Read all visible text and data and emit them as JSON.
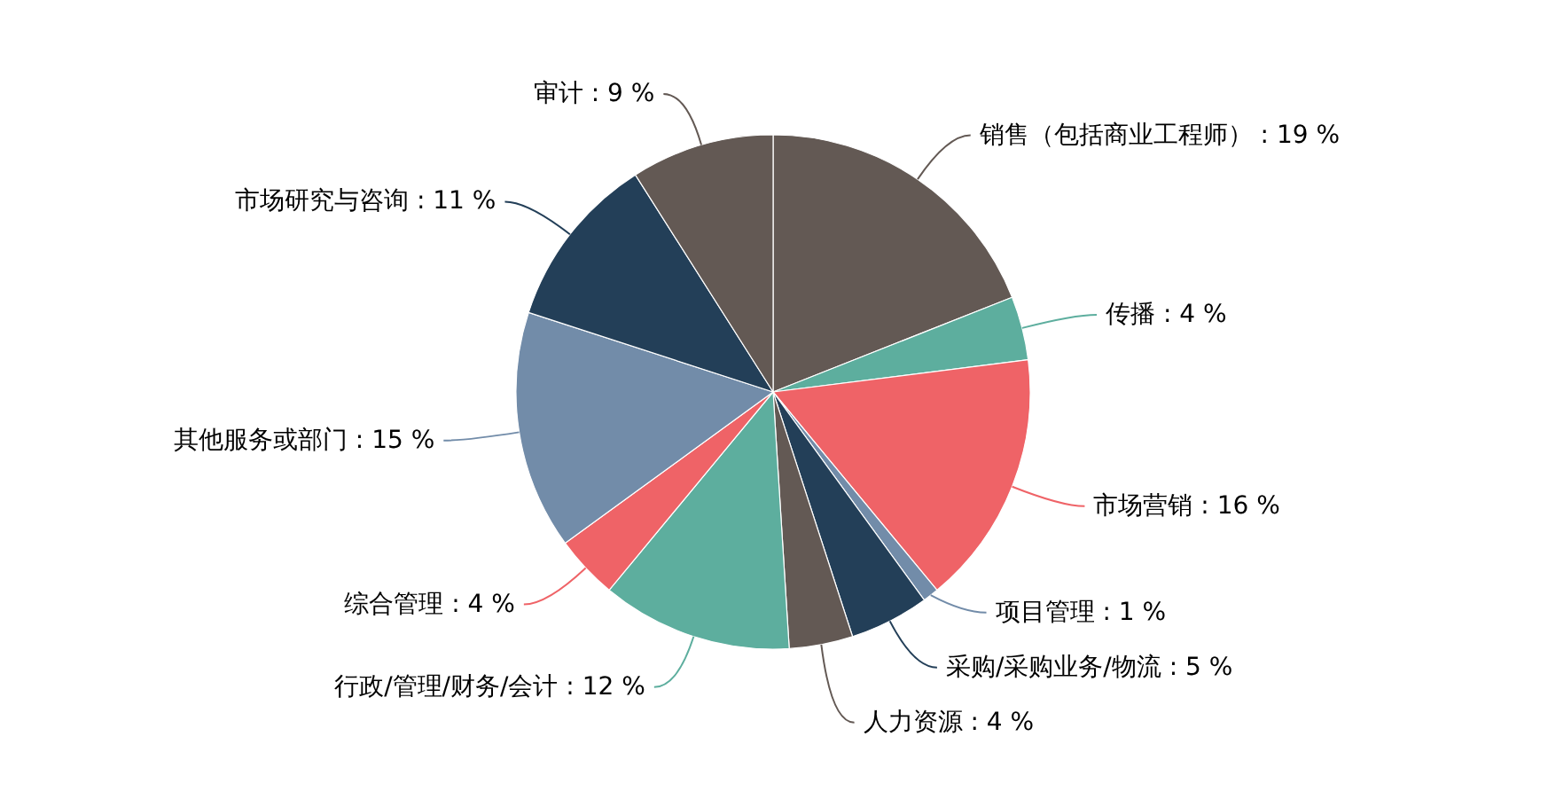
{
  "chart_data": {
    "type": "pie",
    "categories": [
      "销售（包括商业工程师）",
      "传播",
      "市场营销",
      "项目管理",
      "采购/采购业务/物流",
      "人力资源",
      "行政/管理/财务/会计",
      "综合管理",
      "其他服务或部门",
      "市场研究与咨询",
      "审计"
    ],
    "values": [
      19,
      4,
      16,
      1,
      5,
      4,
      12,
      4,
      15,
      11,
      9
    ],
    "value_labels": [
      "19 %",
      "4 %",
      "16 %",
      "1 %",
      "5 %",
      "4 %",
      "12 %",
      "4 %",
      "15 %",
      "11 %",
      "9 %"
    ],
    "colors": [
      "#635954",
      "#5dae9e",
      "#ef6367",
      "#728ca9",
      "#233f58",
      "#635954",
      "#5dae9e",
      "#ef6367",
      "#728ca9",
      "#233f58",
      "#635954"
    ],
    "legend": false
  }
}
